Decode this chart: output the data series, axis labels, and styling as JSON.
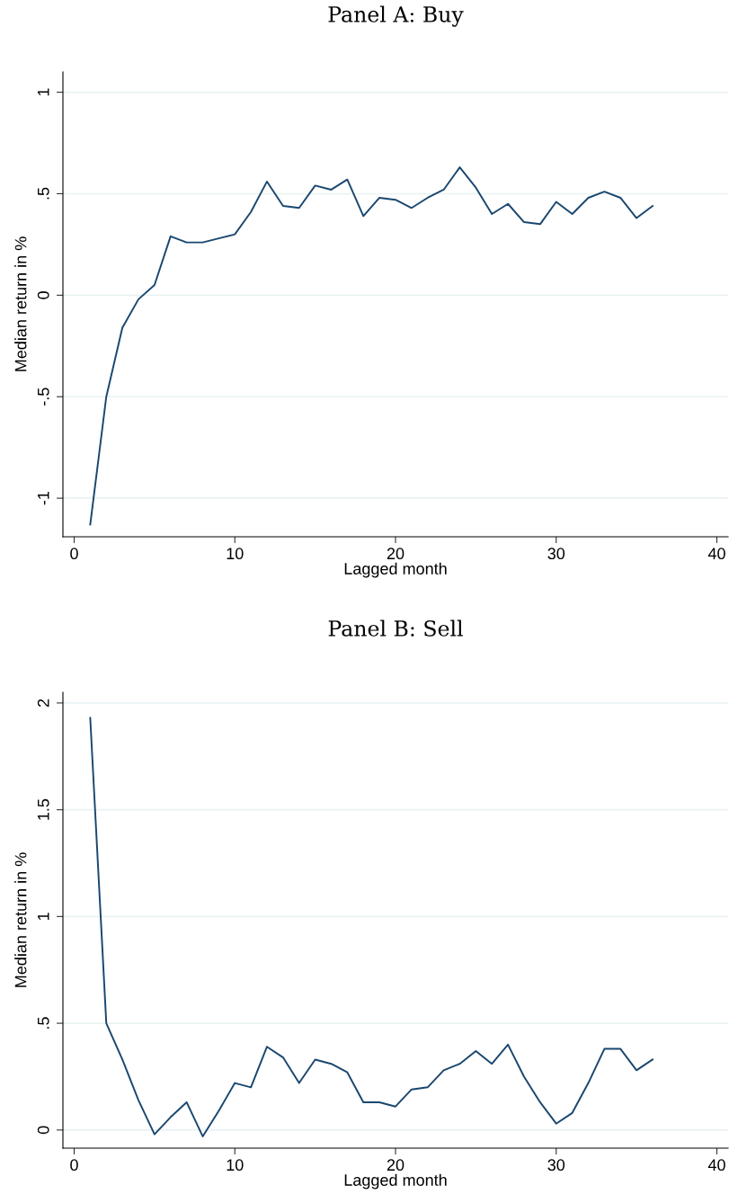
{
  "chart_data": [
    {
      "type": "line",
      "title": "Panel A: Buy",
      "xlabel": "Lagged month",
      "ylabel": "Median return in %",
      "x": [
        1,
        2,
        3,
        4,
        5,
        6,
        7,
        8,
        9,
        10,
        11,
        12,
        13,
        14,
        15,
        16,
        17,
        18,
        19,
        20,
        21,
        22,
        23,
        24,
        25,
        26,
        27,
        28,
        29,
        30,
        31,
        32,
        33,
        34,
        35,
        36
      ],
      "series": [
        {
          "color": "#1a476f",
          "values": [
            -1.13,
            -0.5,
            -0.16,
            -0.02,
            0.05,
            0.29,
            0.26,
            0.26,
            0.28,
            0.3,
            0.41,
            0.56,
            0.44,
            0.43,
            0.54,
            0.52,
            0.57,
            0.39,
            0.48,
            0.47,
            0.43,
            0.48,
            0.52,
            0.63,
            0.53,
            0.4,
            0.45,
            0.36,
            0.35,
            0.46,
            0.4,
            0.48,
            0.51,
            0.48,
            0.38,
            0.44
          ]
        }
      ],
      "xlim": [
        -0.7,
        40.7
      ],
      "ylim": [
        -1.19,
        1.1
      ],
      "xticks": [
        0,
        10,
        20,
        30,
        40
      ],
      "yticks": [
        {
          "value": -1,
          "label": "-1"
        },
        {
          "value": -0.5,
          "label": "-.5"
        },
        0,
        {
          "value": 0.5,
          "label": ".5"
        },
        1
      ],
      "grid": "y",
      "marker": "none",
      "line_style": "solid"
    },
    {
      "type": "line",
      "title": "Panel B: Sell",
      "xlabel": "Lagged month",
      "ylabel": "Median return in %",
      "x": [
        1,
        2,
        3,
        4,
        5,
        6,
        7,
        8,
        9,
        10,
        11,
        12,
        13,
        14,
        15,
        16,
        17,
        18,
        19,
        20,
        21,
        22,
        23,
        24,
        25,
        26,
        27,
        28,
        29,
        30,
        31,
        32,
        33,
        34,
        35,
        36
      ],
      "series": [
        {
          "color": "#1a476f",
          "values": [
            1.93,
            0.5,
            0.33,
            0.14,
            -0.02,
            0.06,
            0.13,
            -0.03,
            0.09,
            0.22,
            0.2,
            0.39,
            0.34,
            0.22,
            0.33,
            0.31,
            0.27,
            0.13,
            0.13,
            0.11,
            0.19,
            0.2,
            0.28,
            0.31,
            0.37,
            0.31,
            0.4,
            0.25,
            0.13,
            0.03,
            0.08,
            0.22,
            0.38,
            0.38,
            0.28,
            0.33
          ]
        }
      ],
      "xlim": [
        -0.7,
        40.7
      ],
      "ylim": [
        -0.085,
        2.05
      ],
      "xticks": [
        0,
        10,
        20,
        30,
        40
      ],
      "yticks": [
        0,
        {
          "value": 0.5,
          "label": ".5"
        },
        1,
        {
          "value": 1.5,
          "label": "1.5"
        },
        2
      ],
      "grid": "y",
      "marker": "none",
      "line_style": "solid"
    }
  ]
}
